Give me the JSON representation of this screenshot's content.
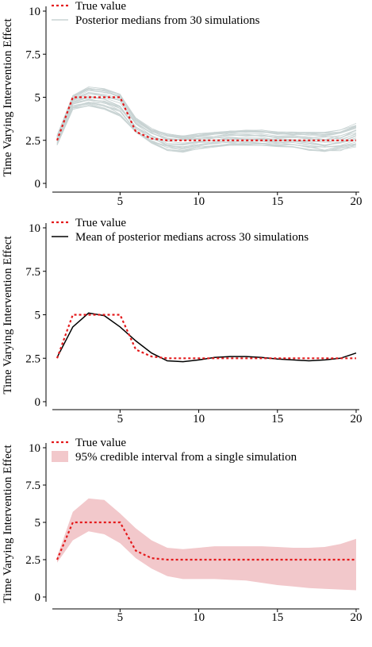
{
  "ylabel": "Time Varying Intervention Effect",
  "chart_data": [
    {
      "type": "line",
      "x": [
        1,
        2,
        3,
        4,
        5,
        6,
        7,
        8,
        9,
        10,
        11,
        12,
        13,
        14,
        15,
        16,
        17,
        18,
        19,
        20
      ],
      "true_value": [
        2.5,
        5,
        5,
        5,
        5,
        3.0,
        2.6,
        2.5,
        2.5,
        2.5,
        2.5,
        2.5,
        2.5,
        2.5,
        2.5,
        2.5,
        2.5,
        2.5,
        2.5,
        2.5
      ],
      "simulation_envelope": {
        "lower": [
          2.2,
          4.3,
          4.5,
          4.3,
          3.9,
          2.9,
          2.3,
          1.9,
          1.8,
          2.0,
          2.1,
          2.2,
          2.2,
          2.2,
          2.1,
          2.1,
          1.9,
          1.8,
          1.9,
          2.1
        ],
        "upper": [
          2.8,
          5.1,
          5.6,
          5.5,
          5.2,
          3.8,
          3.2,
          2.9,
          2.8,
          2.9,
          3.0,
          3.1,
          3.1,
          3.1,
          3.0,
          3.0,
          3.0,
          3.0,
          3.1,
          3.5
        ]
      },
      "simulation_count": 30,
      "xticks": [
        5,
        10,
        15,
        20
      ],
      "yticks": [
        "0",
        "2.5",
        "5",
        "7.5",
        "10"
      ],
      "ylim": [
        0,
        10
      ],
      "xlim": [
        1,
        20
      ],
      "legend": [
        "True value",
        "Posterior medians from 30 simulations"
      ],
      "legend_position": "top-left",
      "grid": false
    },
    {
      "type": "line",
      "x": [
        1,
        2,
        3,
        4,
        5,
        6,
        7,
        8,
        9,
        10,
        11,
        12,
        13,
        14,
        15,
        16,
        17,
        18,
        19,
        20
      ],
      "true_value": [
        2.5,
        5,
        5,
        5,
        5,
        3.0,
        2.6,
        2.5,
        2.5,
        2.5,
        2.5,
        2.5,
        2.5,
        2.5,
        2.5,
        2.5,
        2.5,
        2.5,
        2.5,
        2.5
      ],
      "mean_posterior_median": [
        2.55,
        4.3,
        5.1,
        4.95,
        4.3,
        3.5,
        2.8,
        2.35,
        2.3,
        2.4,
        2.55,
        2.6,
        2.6,
        2.55,
        2.45,
        2.4,
        2.35,
        2.4,
        2.5,
        2.8
      ],
      "xticks": [
        5,
        10,
        15,
        20
      ],
      "yticks": [
        "0",
        "2.5",
        "5",
        "7.5",
        "10"
      ],
      "ylim": [
        0,
        10
      ],
      "xlim": [
        1,
        20
      ],
      "legend": [
        "True value",
        "Mean of posterior medians across 30 simulations"
      ],
      "legend_position": "top-left",
      "grid": false
    },
    {
      "type": "area",
      "x": [
        1,
        2,
        3,
        4,
        5,
        6,
        7,
        8,
        9,
        10,
        11,
        12,
        13,
        14,
        15,
        16,
        17,
        18,
        19,
        20
      ],
      "true_value": [
        2.5,
        5,
        5,
        5,
        5,
        3.1,
        2.6,
        2.5,
        2.5,
        2.5,
        2.5,
        2.5,
        2.5,
        2.5,
        2.5,
        2.5,
        2.5,
        2.5,
        2.5,
        2.5
      ],
      "ci_lower": [
        2.3,
        3.8,
        4.4,
        4.2,
        3.6,
        2.6,
        1.9,
        1.4,
        1.2,
        1.2,
        1.2,
        1.15,
        1.1,
        0.95,
        0.8,
        0.7,
        0.6,
        0.55,
        0.5,
        0.45
      ],
      "ci_upper": [
        2.7,
        5.7,
        6.6,
        6.5,
        5.6,
        4.6,
        3.8,
        3.3,
        3.2,
        3.3,
        3.4,
        3.4,
        3.4,
        3.4,
        3.35,
        3.3,
        3.3,
        3.35,
        3.55,
        3.9
      ],
      "xticks": [
        5,
        10,
        15,
        20
      ],
      "yticks": [
        "0",
        "2.5",
        "5",
        "7.5",
        "10"
      ],
      "ylim": [
        0,
        10
      ],
      "xlim": [
        1,
        20
      ],
      "legend": [
        "True value",
        "95% credible interval from a single simulation"
      ],
      "legend_position": "top-left",
      "grid": false
    }
  ],
  "colors": {
    "true_value": "#e41a1c",
    "simulation_lines": "#c8d3d3",
    "mean_line": "#000000",
    "ci_band": "#f2c8cb",
    "axis": "#000000"
  }
}
